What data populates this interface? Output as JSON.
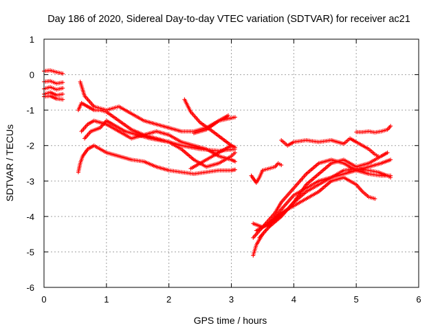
{
  "chart_data": {
    "type": "scatter",
    "title": "Day 186 of 2020, Sidereal Day-to-day VTEC variation (SDTVAR) for receiver ac21",
    "xlabel": "GPS time / hours",
    "ylabel": "SDTVAR / TECUs",
    "xlim": [
      0,
      6
    ],
    "ylim": [
      -6,
      1
    ],
    "xticks": [
      "0",
      "1",
      "2",
      "3",
      "4",
      "5",
      "6"
    ],
    "yticks": [
      "1",
      "0",
      "-1",
      "-2",
      "-3",
      "-4",
      "-5",
      "-6"
    ],
    "grid": true,
    "marker": "+",
    "color": "#ff0000",
    "series": [
      {
        "name": "s1",
        "x": [
          0.0,
          0.1,
          0.2,
          0.3
        ],
        "y": [
          0.1,
          0.12,
          0.07,
          0.03
        ]
      },
      {
        "name": "s2",
        "x": [
          0.0,
          0.1,
          0.2,
          0.3
        ],
        "y": [
          -0.2,
          -0.18,
          -0.25,
          -0.22
        ]
      },
      {
        "name": "s3",
        "x": [
          0.0,
          0.1,
          0.2,
          0.3
        ],
        "y": [
          -0.4,
          -0.35,
          -0.42,
          -0.38
        ]
      },
      {
        "name": "s4",
        "x": [
          0.0,
          0.1,
          0.2,
          0.3
        ],
        "y": [
          -0.55,
          -0.5,
          -0.58,
          -0.55
        ]
      },
      {
        "name": "s5",
        "x": [
          0.0,
          0.1,
          0.2,
          0.3
        ],
        "y": [
          -0.62,
          -0.6,
          -0.68,
          -0.7
        ]
      },
      {
        "name": "s6",
        "x": [
          0.55,
          0.58,
          0.62,
          0.7,
          0.8,
          1.0,
          1.2,
          1.4,
          1.6,
          1.8,
          2.0,
          2.2,
          2.4,
          2.6,
          2.8,
          3.0,
          3.06
        ],
        "y": [
          -2.75,
          -2.5,
          -2.3,
          -2.1,
          -2.0,
          -2.2,
          -2.3,
          -2.4,
          -2.45,
          -2.6,
          -2.7,
          -2.75,
          -2.8,
          -2.75,
          -2.7,
          -2.7,
          -2.68
        ]
      },
      {
        "name": "s7",
        "x": [
          0.55,
          0.6,
          0.7,
          0.8,
          0.9,
          1.0,
          1.2,
          1.4,
          1.6,
          1.8,
          2.0,
          2.2,
          2.5,
          2.8,
          3.06
        ],
        "y": [
          -1.0,
          -0.8,
          -0.9,
          -1.0,
          -1.0,
          -1.05,
          -1.3,
          -1.55,
          -1.7,
          -1.8,
          -1.9,
          -2.0,
          -2.1,
          -2.15,
          -2.1
        ]
      },
      {
        "name": "s8",
        "x": [
          0.58,
          0.65,
          0.8,
          0.9,
          1.0,
          1.1,
          1.2,
          1.4,
          1.6,
          1.8,
          2.0,
          2.2,
          2.4,
          2.6,
          2.8,
          3.06
        ],
        "y": [
          -0.2,
          -0.6,
          -0.9,
          -0.95,
          -1.0,
          -0.95,
          -0.9,
          -1.1,
          -1.3,
          -1.4,
          -1.5,
          -1.6,
          -1.6,
          -1.5,
          -1.3,
          -1.2
        ]
      },
      {
        "name": "s9",
        "x": [
          0.6,
          0.7,
          0.8,
          1.0,
          1.2,
          1.4,
          1.6,
          1.8,
          2.0,
          2.2,
          2.4,
          2.6,
          2.8,
          3.0,
          3.06
        ],
        "y": [
          -1.6,
          -1.4,
          -1.3,
          -1.4,
          -1.6,
          -1.8,
          -1.7,
          -1.6,
          -1.7,
          -1.9,
          -2.0,
          -2.1,
          -2.3,
          -2.4,
          -2.45
        ]
      },
      {
        "name": "s10",
        "x": [
          0.65,
          0.75,
          0.9,
          1.0,
          1.1,
          1.3,
          1.5,
          1.7,
          2.0,
          2.2,
          2.4,
          2.6,
          2.8,
          3.0,
          3.06
        ],
        "y": [
          -1.8,
          -1.6,
          -1.5,
          -1.3,
          -1.4,
          -1.6,
          -1.7,
          -1.8,
          -1.9,
          -2.1,
          -2.4,
          -2.6,
          -2.5,
          -2.3,
          -2.2
        ]
      },
      {
        "name": "s11",
        "x": [
          2.25,
          2.35,
          2.5,
          2.7,
          3.0,
          3.06
        ],
        "y": [
          -0.7,
          -1.05,
          -1.35,
          -1.6,
          -2.0,
          -2.05
        ]
      },
      {
        "name": "s12",
        "x": [
          2.35,
          2.5,
          2.7,
          2.9,
          3.0
        ],
        "y": [
          -2.65,
          -2.5,
          -2.3,
          -2.1,
          -2.0
        ]
      },
      {
        "name": "s13",
        "x": [
          2.4,
          2.6,
          2.8,
          2.95
        ],
        "y": [
          -1.65,
          -1.55,
          -1.3,
          -1.15
        ]
      },
      {
        "name": "s14",
        "x": [
          3.32,
          3.36,
          3.4,
          3.45,
          3.5
        ],
        "y": [
          -2.85,
          -2.95,
          -3.05,
          -2.9,
          -2.7
        ]
      },
      {
        "name": "s15",
        "x": [
          3.5,
          3.6,
          3.7,
          3.75,
          3.8
        ],
        "y": [
          -2.7,
          -2.65,
          -2.6,
          -2.5,
          -2.55
        ]
      },
      {
        "name": "s16",
        "x": [
          3.35,
          3.4,
          3.5,
          3.6,
          3.7,
          3.8,
          3.9,
          4.0,
          4.2,
          4.4,
          4.6,
          4.8,
          5.0,
          5.2,
          5.4,
          5.55
        ],
        "y": [
          -5.1,
          -4.8,
          -4.5,
          -4.3,
          -4.0,
          -3.8,
          -3.6,
          -3.4,
          -3.2,
          -3.0,
          -2.9,
          -2.8,
          -2.7,
          -2.6,
          -2.5,
          -2.4
        ]
      },
      {
        "name": "s17",
        "x": [
          3.35,
          3.45,
          3.6,
          3.7,
          3.8,
          3.9,
          4.0,
          4.2,
          4.4,
          4.6,
          4.8,
          5.0,
          5.2,
          5.4,
          5.55
        ],
        "y": [
          -4.6,
          -4.4,
          -4.1,
          -3.9,
          -3.6,
          -3.4,
          -3.2,
          -2.8,
          -2.5,
          -2.4,
          -2.5,
          -2.7,
          -2.8,
          -2.85,
          -2.85
        ]
      },
      {
        "name": "s18",
        "x": [
          3.35,
          3.5,
          3.7,
          3.9,
          4.0,
          4.2,
          4.4,
          4.6,
          4.8,
          5.0,
          5.2,
          5.35,
          5.5,
          5.55
        ],
        "y": [
          -4.2,
          -4.3,
          -4.1,
          -3.8,
          -3.6,
          -3.3,
          -3.1,
          -2.9,
          -2.7,
          -2.65,
          -2.7,
          -2.75,
          -2.85,
          -2.9
        ]
      },
      {
        "name": "s19",
        "x": [
          3.4,
          3.6,
          3.8,
          4.0,
          4.2,
          4.4,
          4.6,
          4.8,
          5.0,
          5.1,
          5.2,
          5.3
        ],
        "y": [
          -4.4,
          -4.2,
          -3.9,
          -3.7,
          -3.5,
          -3.3,
          -3.0,
          -2.9,
          -3.1,
          -3.3,
          -3.45,
          -3.5
        ]
      },
      {
        "name": "s20",
        "x": [
          3.45,
          3.6,
          3.8,
          4.0,
          4.2,
          4.4,
          4.6,
          4.8,
          5.0,
          5.2,
          5.4,
          5.5
        ],
        "y": [
          -4.6,
          -4.3,
          -4.0,
          -3.6,
          -3.1,
          -2.8,
          -2.5,
          -2.4,
          -2.6,
          -2.5,
          -2.3,
          -2.2
        ]
      },
      {
        "name": "s21",
        "x": [
          3.8,
          3.9,
          4.0,
          4.2,
          4.4,
          4.6,
          4.8,
          4.9,
          5.0,
          5.2,
          5.3,
          5.35
        ],
        "y": [
          -1.85,
          -2.0,
          -1.9,
          -1.85,
          -1.9,
          -1.85,
          -1.95,
          -1.8,
          -1.9,
          -2.1,
          -2.25,
          -2.3
        ]
      },
      {
        "name": "s22",
        "x": [
          5.0,
          5.1,
          5.2,
          5.3,
          5.4,
          5.5,
          5.55
        ],
        "y": [
          -1.62,
          -1.62,
          -1.6,
          -1.63,
          -1.6,
          -1.55,
          -1.45
        ]
      }
    ]
  }
}
